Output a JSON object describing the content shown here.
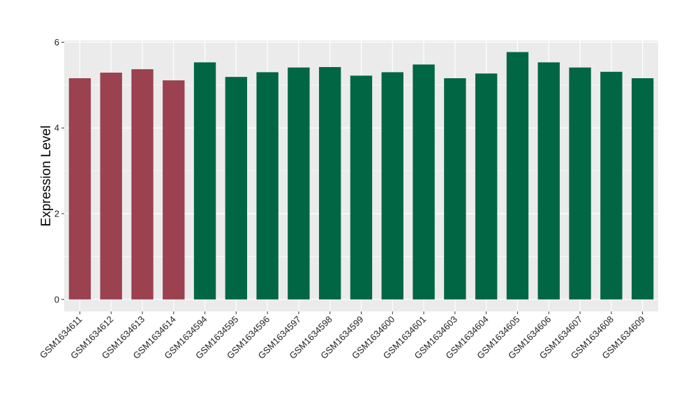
{
  "chart_data": {
    "type": "bar",
    "title": "",
    "xlabel": "",
    "ylabel": "Expression Level",
    "ylim": [
      -0.28,
      6.04
    ],
    "yticks": [
      0,
      2,
      4,
      6
    ],
    "grid": true,
    "legend": "none",
    "categories": [
      "GSM1634611",
      "GSM1634612",
      "GSM1634613",
      "GSM1634614",
      "GSM1634594",
      "GSM1634595",
      "GSM1634596",
      "GSM1634597",
      "GSM1634598",
      "GSM1634599",
      "GSM1634600",
      "GSM1634601",
      "GSM1634603",
      "GSM1634604",
      "GSM1634605",
      "GSM1634606",
      "GSM1634607",
      "GSM1634608",
      "GSM1634609"
    ],
    "values": [
      5.16,
      5.29,
      5.37,
      5.11,
      5.53,
      5.19,
      5.3,
      5.41,
      5.42,
      5.22,
      5.3,
      5.48,
      5.16,
      5.27,
      5.77,
      5.53,
      5.41,
      5.31,
      5.16
    ],
    "groups": [
      "g1",
      "g1",
      "g1",
      "g1",
      "g2",
      "g2",
      "g2",
      "g2",
      "g2",
      "g2",
      "g2",
      "g2",
      "g2",
      "g2",
      "g2",
      "g2",
      "g2",
      "g2",
      "g2"
    ],
    "colors": {
      "g1": "#9b414f",
      "g2": "#006644",
      "panel": "#ebebeb",
      "grid": "#ffffff"
    }
  }
}
